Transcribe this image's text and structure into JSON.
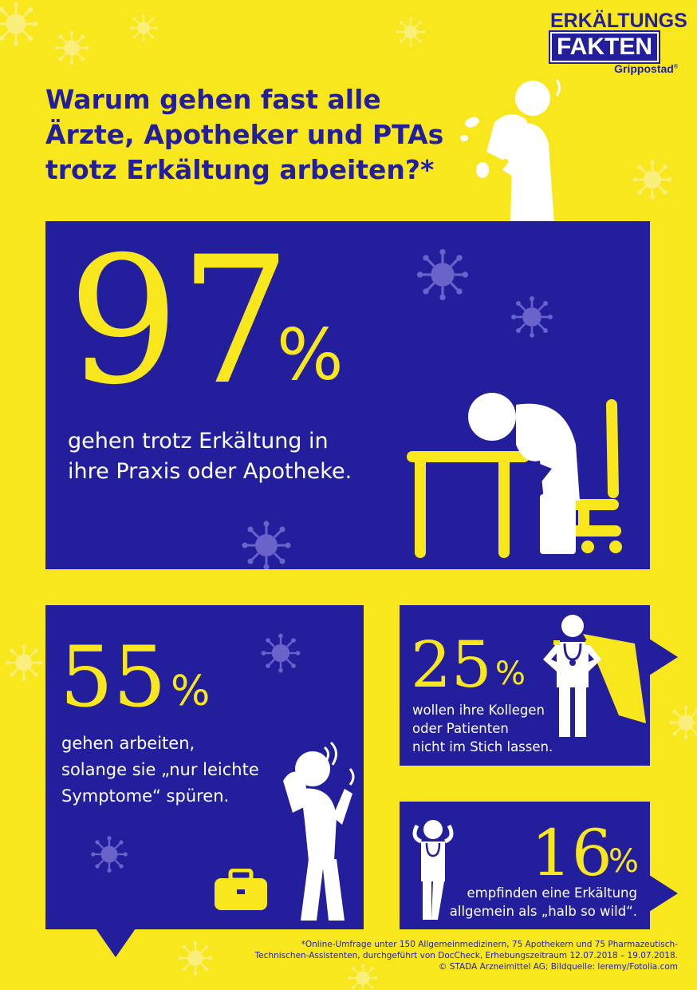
{
  "logo": {
    "line1": "ERKÄLTUNGS",
    "line2": "FAKTEN",
    "brand": "Grippostad",
    "brand_mark": "®"
  },
  "headline": "Warum gehen fast alle Ärzte, Apotheker und PTAs trotz Erkältung arbeiten?*",
  "stat_97": {
    "number": "97",
    "unit": "%",
    "text_line1": "gehen trotz Erkältung in",
    "text_line2": "ihre Praxis oder Apotheke."
  },
  "stat_55": {
    "number": "55",
    "unit": "%",
    "text_line1": "gehen arbeiten,",
    "text_line2": "solange sie „nur leichte",
    "text_line3": "Symptome“ spüren."
  },
  "stat_25": {
    "number": "25",
    "unit": "%",
    "text_line1": "wollen ihre Kollegen",
    "text_line2": "oder Patienten",
    "text_line3": "nicht im Stich lassen."
  },
  "stat_16": {
    "number": "16",
    "unit": "%",
    "text_line1": "empfinden eine Erkältung",
    "text_line2": "allgemein als „halb so wild“."
  },
  "footnote": {
    "line1": "*Online-Umfrage unter 150 Allgemeinmedizinern, 75 Apothekern und 75 Pharmazeutisch-",
    "line2": "Technischen-Assistenten, durchgeführt von DocCheck, Erhebungszeitraum 12.07.2018 – 19.07.2018.",
    "line3": "© STADA Arzneimittel AG; Bildquelle: leremy/Fotolia.com"
  },
  "colors": {
    "yellow": "#f8e71c",
    "blue": "#231f9c",
    "white": "#ffffff",
    "light_virus": "#faf08a"
  }
}
